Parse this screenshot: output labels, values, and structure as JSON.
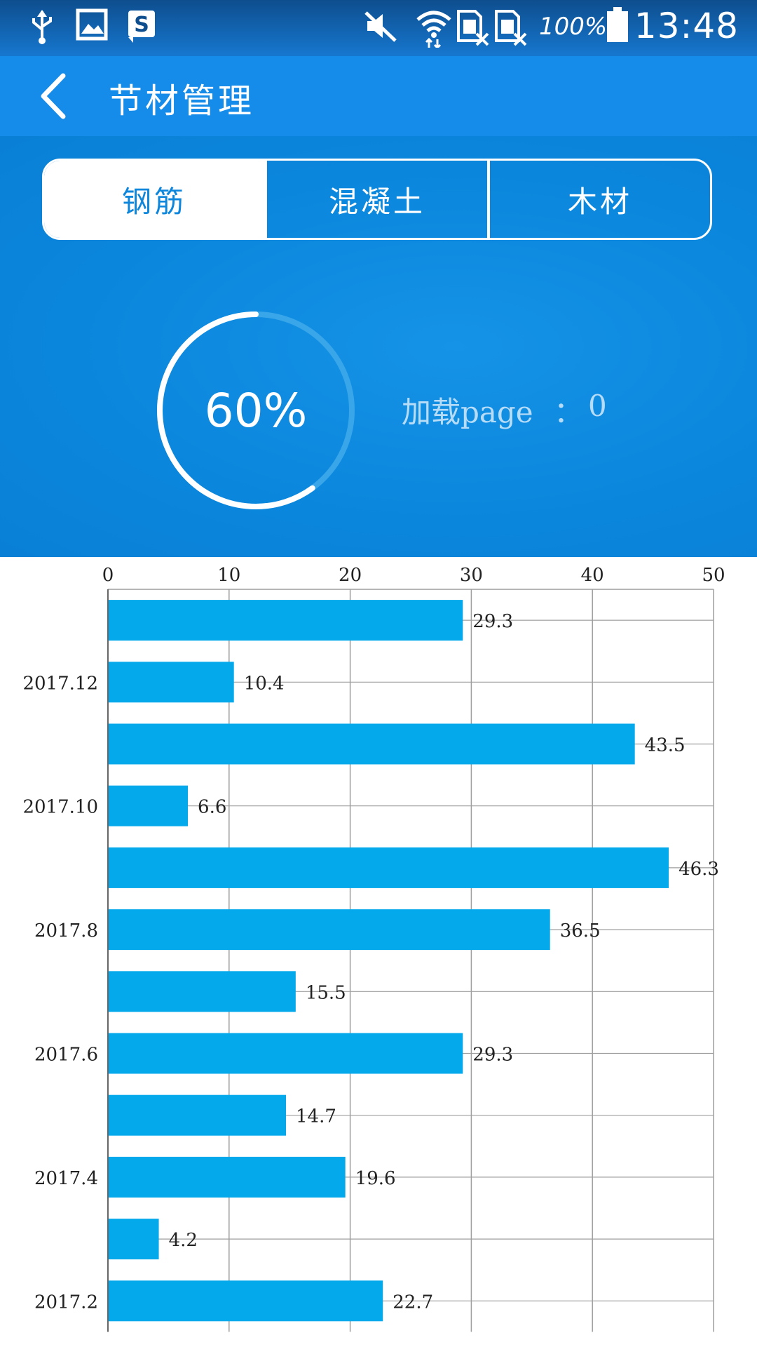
{
  "status_bar": {
    "battery": "100%",
    "time": "13:48",
    "icons": [
      "usb-icon",
      "image-icon",
      "s-app-icon",
      "mute-icon",
      "wifi-icon",
      "sim-off-icon",
      "sim-off-icon",
      "battery-icon"
    ]
  },
  "app_bar": {
    "title": "节材管理",
    "back_icon": "chevron-left-icon"
  },
  "tabs": [
    {
      "label": "钢筋",
      "active": true
    },
    {
      "label": "混凝土",
      "active": false
    },
    {
      "label": "木材",
      "active": false
    }
  ],
  "progress": {
    "label": "60%",
    "value": 0.6
  },
  "loading": {
    "label": "加载page",
    "separator": "：",
    "value": "0"
  },
  "colors": {
    "accent": "#158bea",
    "bar": "#03a9eb",
    "grid": "#9e9e9e"
  },
  "chart_data": {
    "type": "bar",
    "orientation": "horizontal",
    "xlim": [
      0,
      50
    ],
    "xticks": [
      "0",
      "10",
      "20",
      "30",
      "40",
      "50"
    ],
    "category_labels": [
      "",
      "2017.12",
      "",
      "2017.10",
      "",
      "2017.8",
      "",
      "2017.6",
      "",
      "2017.4",
      "",
      "2017.2"
    ],
    "values": [
      29.3,
      10.4,
      43.5,
      6.6,
      46.3,
      36.5,
      15.5,
      29.3,
      14.7,
      19.6,
      4.2,
      22.7
    ],
    "value_labels": [
      "29.3",
      "10.4",
      "43.5",
      "6.6",
      "46.3",
      "36.5",
      "15.5",
      "29.3",
      "14.7",
      "19.6",
      "4.2",
      "22.7"
    ],
    "grid": true
  }
}
